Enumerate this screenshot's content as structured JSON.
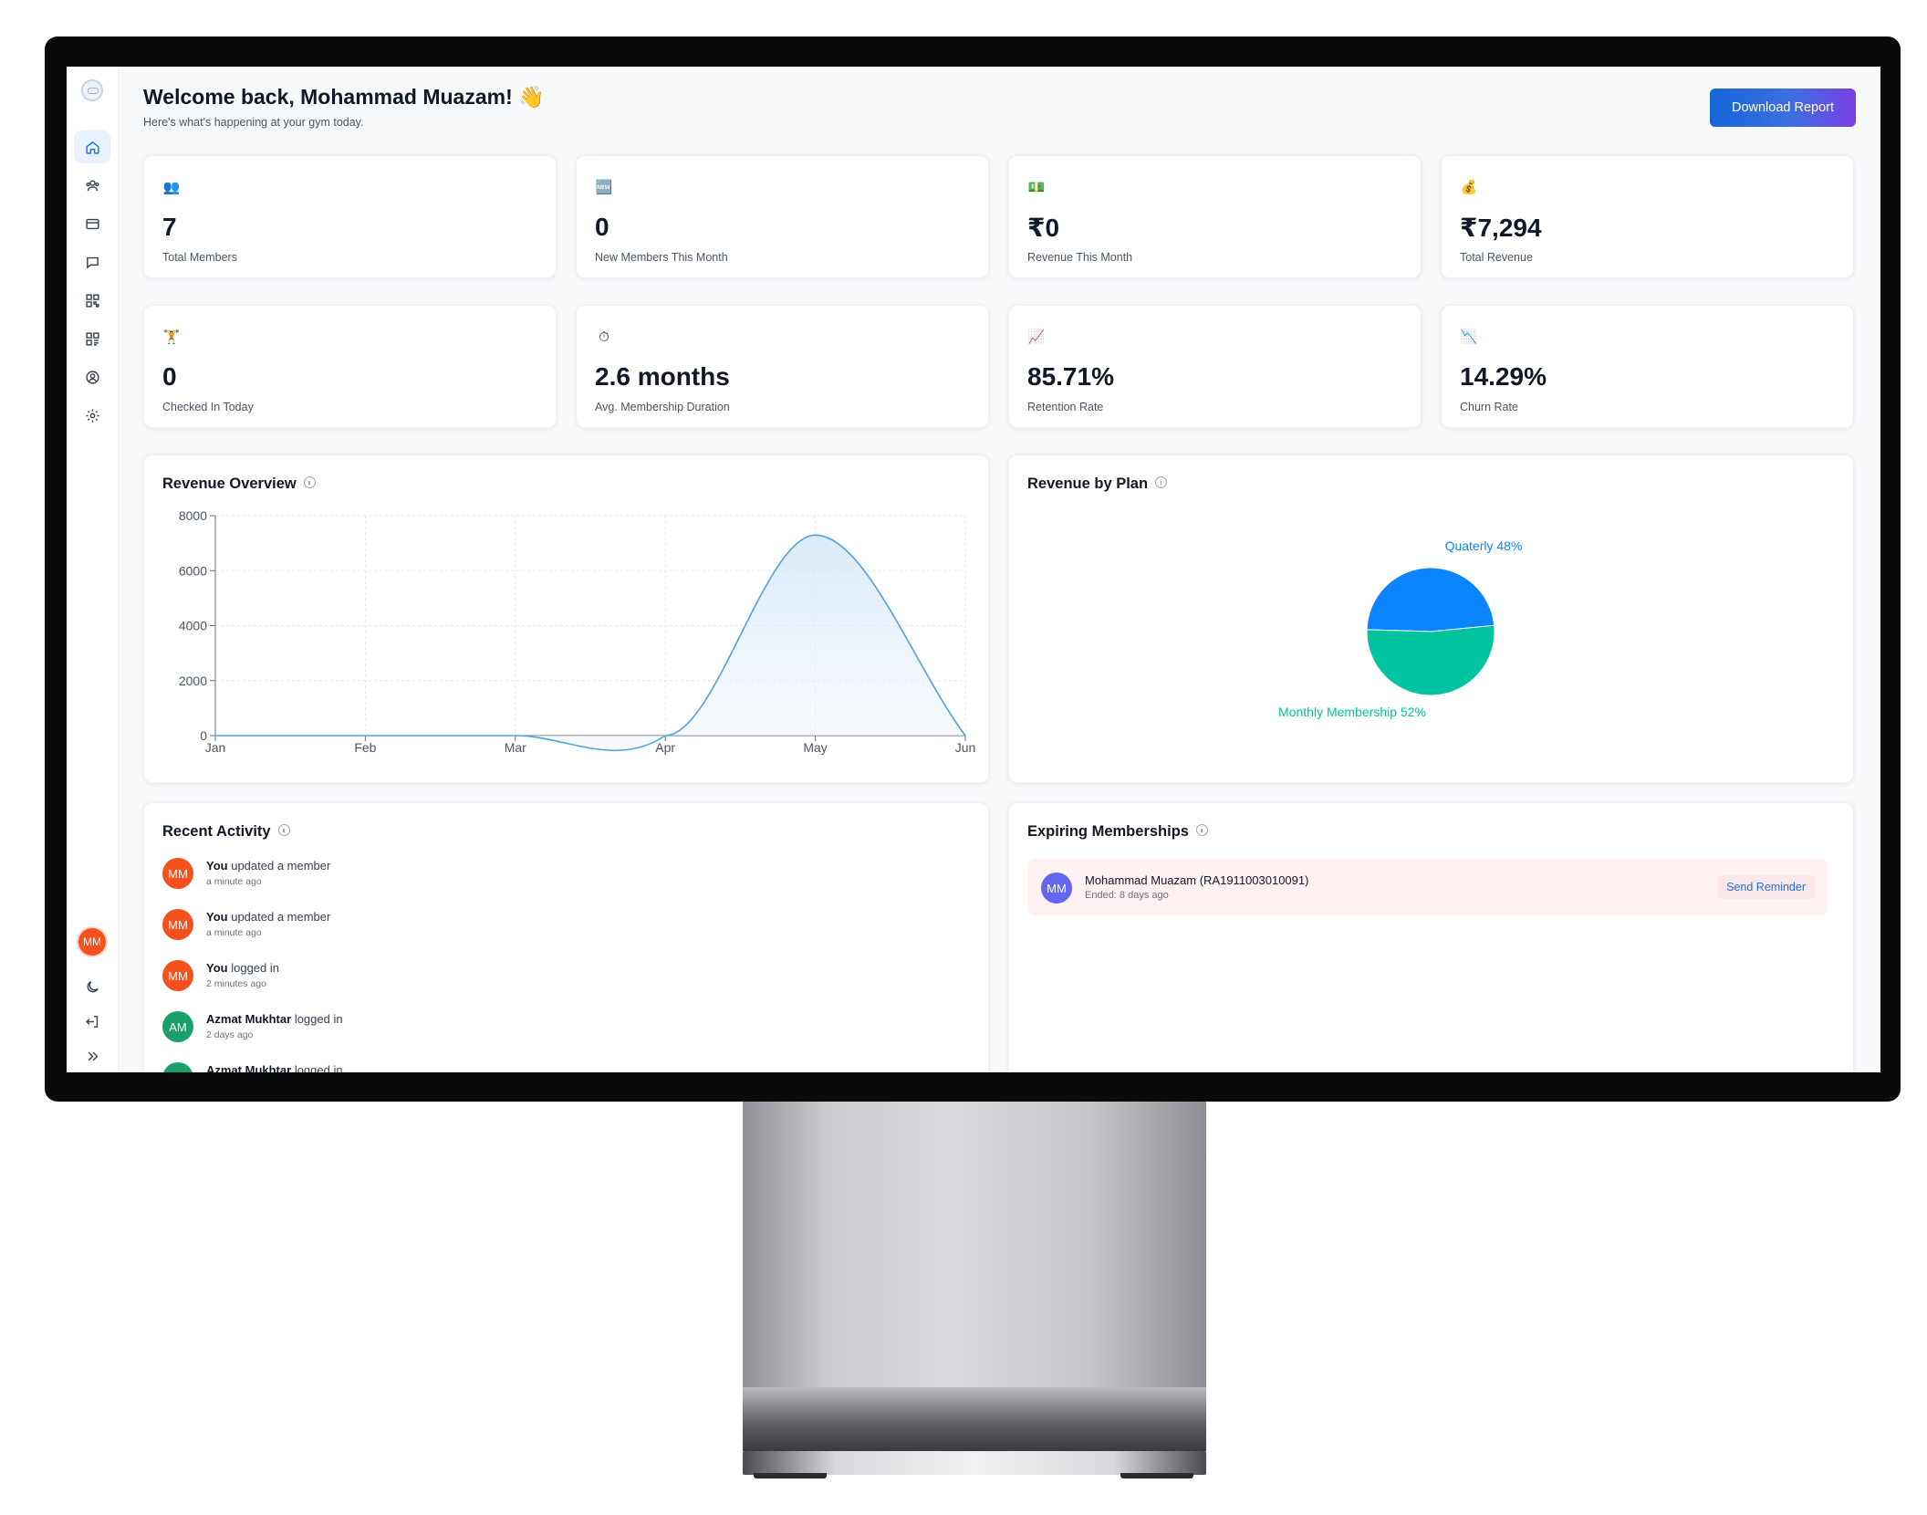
{
  "header": {
    "welcome": "Welcome back, Mohammad Muazam! 👋",
    "subtitle": "Here's what's happening at your gym today.",
    "download_label": "Download Report"
  },
  "sidebar": {
    "items": [
      {
        "name": "home-icon",
        "active": true
      },
      {
        "name": "members-icon",
        "active": false
      },
      {
        "name": "card-icon",
        "active": false
      },
      {
        "name": "chat-icon",
        "active": false
      },
      {
        "name": "qr-code-icon",
        "active": false
      },
      {
        "name": "qr-scan-icon",
        "active": false
      },
      {
        "name": "profile-icon",
        "active": false
      },
      {
        "name": "gear-icon",
        "active": false
      }
    ],
    "avatar_initials": "MM"
  },
  "stats": [
    {
      "icon": "👥",
      "value": "7",
      "label": "Total Members"
    },
    {
      "icon": "🆕",
      "value": "0",
      "label": "New Members This Month"
    },
    {
      "icon": "💵",
      "value": "₹0",
      "label": "Revenue This Month"
    },
    {
      "icon": "💰",
      "value": "₹7,294",
      "label": "Total Revenue"
    },
    {
      "icon": "🏋",
      "value": "0",
      "label": "Checked In Today"
    },
    {
      "icon": "⏱",
      "value": "2.6 months",
      "label": "Avg. Membership Duration"
    },
    {
      "icon": "📈",
      "value": "85.71%",
      "label": "Retention Rate"
    },
    {
      "icon": "📉",
      "value": "14.29%",
      "label": "Churn Rate"
    }
  ],
  "revenue_overview": {
    "title": "Revenue Overview"
  },
  "revenue_by_plan": {
    "title": "Revenue by Plan"
  },
  "chart_data": [
    {
      "type": "area",
      "title": "Revenue Overview",
      "categories": [
        "Jan",
        "Feb",
        "Mar",
        "Apr",
        "May",
        "Jun"
      ],
      "values": [
        0,
        0,
        0,
        0,
        7294,
        0
      ],
      "yticks": [
        "0",
        "2000",
        "4000",
        "6000",
        "8000"
      ],
      "ylim": [
        0,
        8000
      ],
      "grid": true,
      "color": "#4da3e0"
    },
    {
      "type": "pie",
      "title": "Revenue by Plan",
      "slices": [
        {
          "label": "Quaterly 48%",
          "name": "Quaterly",
          "value": 48,
          "color": "#0a84ff"
        },
        {
          "label": "Monthly Membership 52%",
          "name": "Monthly Membership",
          "value": 52,
          "color": "#00c49f"
        }
      ]
    }
  ],
  "recent_activity": {
    "title": "Recent Activity",
    "items": [
      {
        "initials": "MM",
        "color": "#f4511e",
        "actor": "You",
        "action": "updated a member",
        "time": "a minute ago"
      },
      {
        "initials": "MM",
        "color": "#f4511e",
        "actor": "You",
        "action": "updated a member",
        "time": "a minute ago"
      },
      {
        "initials": "MM",
        "color": "#f4511e",
        "actor": "You",
        "action": "logged in",
        "time": "2 minutes ago"
      },
      {
        "initials": "AM",
        "color": "#1a9e6a",
        "actor": "Azmat Mukhtar",
        "action": "logged in",
        "time": "2 days ago"
      },
      {
        "initials": "AM",
        "color": "#1a9e6a",
        "actor": "Azmat Mukhtar",
        "action": "logged in",
        "time": ""
      }
    ]
  },
  "expiring": {
    "title": "Expiring Memberships",
    "rows": [
      {
        "initials": "MM",
        "name": "Mohammad Muazam (RA1911003010091)",
        "ended": "Ended: 8 days ago",
        "action": "Send Reminder"
      }
    ]
  }
}
